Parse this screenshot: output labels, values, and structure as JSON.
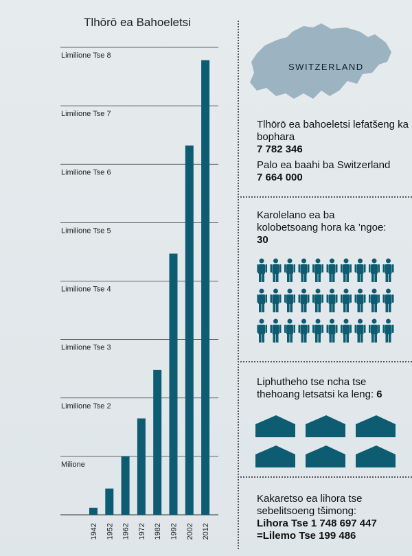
{
  "chart_data": {
    "type": "bar",
    "title": "Tlhōrō ea Bahoeletsi",
    "categories": [
      "1942",
      "1952",
      "1962",
      "1972",
      "1982",
      "1992",
      "2002",
      "2012"
    ],
    "values": [
      120000,
      450000,
      1000000,
      1650000,
      2480000,
      4470000,
      6320000,
      7780000
    ],
    "ylim": [
      0,
      8000000
    ],
    "yticks": [
      {
        "value": 1000000,
        "label": "Milione"
      },
      {
        "value": 2000000,
        "label": "Limilione Tse 2"
      },
      {
        "value": 3000000,
        "label": "Limilione Tse 3"
      },
      {
        "value": 4000000,
        "label": "Limilione Tse 4"
      },
      {
        "value": 5000000,
        "label": "Limilione Tse 5"
      },
      {
        "value": 6000000,
        "label": "Limilione Tse 6"
      },
      {
        "value": 7000000,
        "label": "Limilione Tse 7"
      },
      {
        "value": 8000000,
        "label": "Limilione Tse 8"
      }
    ],
    "grid": true,
    "bar_color": "#0e5c72"
  },
  "map": {
    "label": "SWITZERLAND",
    "color": "#9cb3c2"
  },
  "stats": {
    "peak_label": "Tlhōrō ea bahoeletsi lefatšeng ka bophara",
    "peak_value": "7 782 346",
    "pop_label": "Palo ea baahi ba Switzerland",
    "pop_value": "7 664 000",
    "ratio_label": "Karolelano ea ba kolobetsoang hora ka ’ngoe:",
    "ratio_value": "30",
    "ratio_icon": "person-icon",
    "ratio_icon_count": 30,
    "cong_label": "Liphutheho tse ncha tse thehoang letsatsi ka leng:",
    "cong_value": "6",
    "cong_icon": "kingdom-hall-icon",
    "cong_icon_count": 6,
    "hours_label": "Kakaretso ea lihora tse sebelitsoeng tšimong:",
    "hours_value": "Lihora Tse 1 748 697 447",
    "years_value": "=Lilemo Tse 199 486"
  },
  "colors": {
    "accent": "#0e5c72"
  }
}
